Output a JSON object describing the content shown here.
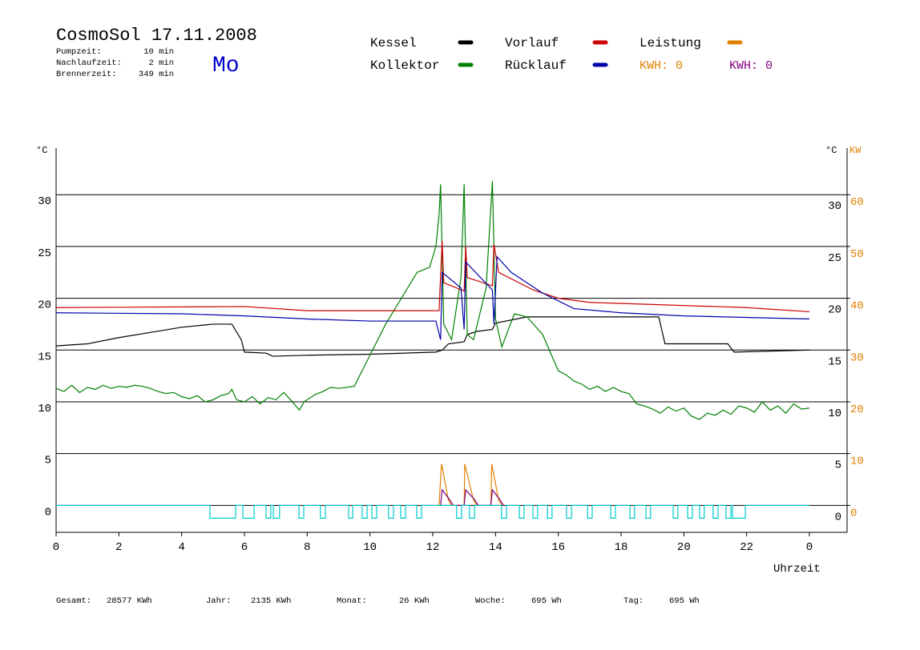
{
  "chart_data": {
    "type": "line",
    "title": "CosmoSol 17.11.2008",
    "info": [
      {
        "label": "Pumpzeit:",
        "value": "10 min"
      },
      {
        "label": "Nachlaufzeit:",
        "value": "2 min"
      },
      {
        "label": "Brennerzeit:",
        "value": "349 min"
      }
    ],
    "day": "Mo",
    "annotations": [
      {
        "text": "KWH: 0",
        "color": "#e08000"
      },
      {
        "text": "KWH: 0",
        "color": "#800080"
      }
    ],
    "y_label": "°C",
    "y2_label_c": "°C",
    "y2_label": "KW",
    "x_label": "Uhrzeit",
    "stats": [
      {
        "label": "Gesamt:",
        "value": "28577 KWh"
      },
      {
        "label": "Jahr:",
        "value": "2135 KWh"
      },
      {
        "label": "Monat:",
        "value": "26 KWh"
      },
      {
        "label": "Woche:",
        "value": "695 Wh"
      },
      {
        "label": "Tag:",
        "value": "695 Wh"
      }
    ],
    "xlim": [
      0,
      25.2
    ],
    "xticks": [
      0,
      2,
      4,
      6,
      8,
      10,
      12,
      14,
      16,
      18,
      20,
      22,
      {
        "value": 24,
        "label": "0"
      }
    ],
    "ylim": [
      -2.6,
      34.5
    ],
    "yticks": [
      0,
      5,
      10,
      15,
      20,
      25,
      30
    ],
    "y2lim": [
      -5.2,
      69
    ],
    "y2ticks": [
      0,
      10,
      20,
      30,
      40,
      50,
      60
    ],
    "grid": true,
    "series": [
      {
        "name": "Kessel",
        "color": "#000000",
        "x": [
          0,
          1,
          2,
          3,
          4,
          5.0,
          5.6,
          5.9,
          6.0,
          6.7,
          6.9,
          8,
          10,
          12.1,
          12.3,
          12.5,
          13.0,
          13.1,
          13.4,
          13.9,
          14.0,
          15,
          17,
          19.2,
          19.4,
          21.4,
          21.6,
          24
        ],
        "values": [
          15.4,
          15.6,
          16.2,
          16.7,
          17.2,
          17.5,
          17.5,
          16.0,
          14.8,
          14.7,
          14.4,
          14.5,
          14.6,
          14.8,
          15.0,
          15.6,
          15.8,
          16.5,
          16.8,
          17.0,
          17.6,
          18.2,
          18.2,
          18.2,
          15.6,
          15.6,
          14.8,
          15.0
        ]
      },
      {
        "name": "Kollektor",
        "color": "#008000",
        "x": [
          0,
          0.25,
          0.5,
          0.75,
          1,
          1.25,
          1.5,
          1.75,
          2,
          2.25,
          2.5,
          2.75,
          3,
          3.25,
          3.5,
          3.75,
          4,
          4.25,
          4.5,
          4.75,
          5,
          5.25,
          5.5,
          5.6,
          5.75,
          6,
          6.25,
          6.5,
          6.75,
          7,
          7.25,
          7.5,
          7.75,
          7.9,
          8.25,
          8.5,
          8.75,
          9,
          9.5,
          10,
          10.5,
          11,
          11.5,
          11.9,
          12.1,
          12.2,
          12.25,
          12.35,
          12.6,
          12.9,
          13.0,
          13.1,
          13.3,
          13.7,
          13.9,
          14.0,
          14.2,
          14.6,
          15.0,
          15.5,
          16,
          16.25,
          16.5,
          16.75,
          17,
          17.25,
          17.5,
          17.75,
          18,
          18.25,
          18.5,
          18.75,
          19,
          19.25,
          19.5,
          19.75,
          20,
          20.25,
          20.5,
          20.75,
          21,
          21.25,
          21.5,
          21.75,
          22,
          22.25,
          22.5,
          22.75,
          23,
          23.25,
          23.5,
          23.75,
          24
        ],
        "values": [
          11.3,
          11.0,
          11.6,
          10.9,
          11.4,
          11.2,
          11.6,
          11.3,
          11.5,
          11.4,
          11.6,
          11.5,
          11.3,
          11.0,
          10.8,
          10.9,
          10.5,
          10.3,
          10.6,
          10.0,
          10.2,
          10.6,
          10.8,
          11.2,
          10.2,
          10.0,
          10.5,
          9.8,
          10.4,
          10.2,
          10.9,
          10.1,
          9.2,
          10.0,
          10.7,
          11.0,
          11.4,
          11.3,
          11.5,
          14.5,
          17.5,
          20.0,
          22.5,
          23.0,
          25.0,
          28.0,
          31.0,
          17.5,
          16.0,
          22.0,
          31.0,
          16.5,
          16.0,
          21.0,
          31.3,
          18.0,
          15.3,
          18.5,
          18.2,
          16.5,
          13.0,
          12.6,
          12.0,
          11.7,
          11.2,
          11.5,
          11.0,
          11.4,
          11.0,
          10.8,
          9.8,
          9.6,
          9.3,
          8.9,
          9.5,
          9.1,
          9.4,
          8.6,
          8.3,
          8.9,
          8.7,
          9.2,
          8.8,
          9.6,
          9.4,
          9.0,
          10.0,
          9.2,
          9.6,
          8.9,
          9.8,
          9.3,
          9.4
        ]
      },
      {
        "name": "Vorlauf",
        "color": "#cc0000",
        "x": [
          0,
          6,
          8,
          12.2,
          12.3,
          12.35,
          13.0,
          13.05,
          13.1,
          13.9,
          13.95,
          14.1,
          15.2,
          16,
          17,
          19,
          22,
          24
        ],
        "values": [
          19.1,
          19.2,
          18.8,
          18.8,
          25.5,
          21.5,
          20.7,
          25.0,
          22.0,
          21.2,
          25.2,
          22.5,
          20.8,
          20.0,
          19.6,
          19.4,
          19.1,
          18.7
        ]
      },
      {
        "name": "Rücklauf",
        "color": "#0000aa",
        "x": [
          0,
          4,
          6,
          8,
          10,
          12.1,
          12.25,
          12.3,
          12.9,
          13.0,
          13.05,
          13.9,
          13.95,
          14.05,
          14.5,
          15.5,
          16.5,
          18,
          20,
          24
        ],
        "values": [
          18.6,
          18.5,
          18.3,
          18.0,
          17.8,
          17.8,
          16.0,
          22.5,
          21.0,
          17.0,
          23.5,
          20.8,
          17.5,
          24.0,
          22.5,
          20.5,
          19.0,
          18.6,
          18.3,
          18.0
        ]
      },
      {
        "name": "Leistung",
        "color": "#e08000",
        "axis": "y2",
        "x": [
          12.2,
          12.28,
          12.5,
          12.6,
          13.0,
          13.02,
          13.3,
          13.4,
          13.85,
          13.88,
          14.1,
          14.2
        ],
        "values": [
          0,
          8,
          1,
          0,
          0,
          8,
          1,
          0,
          0,
          8,
          1,
          0
        ]
      },
      {
        "color": "#800080",
        "axis": "y2",
        "x": [
          12.25,
          12.3,
          12.55,
          12.65,
          13.0,
          13.05,
          13.35,
          13.45,
          13.85,
          13.9,
          14.15,
          14.25
        ],
        "values": [
          0,
          3,
          1,
          0,
          0,
          3,
          1,
          0,
          0,
          3,
          1,
          0
        ]
      },
      {
        "color": "#00cccc",
        "step": "post",
        "x": [
          0,
          4.9,
          5.72,
          5.95,
          6.31,
          6.69,
          6.84,
          6.92,
          7.12,
          7.74,
          7.89,
          8.42,
          8.58,
          9.32,
          9.45,
          9.75,
          9.91,
          10.06,
          10.21,
          10.59,
          10.75,
          10.98,
          11.13,
          11.49,
          11.64,
          12.76,
          12.92,
          13.17,
          13.33,
          14.19,
          14.35,
          14.76,
          14.91,
          15.19,
          15.34,
          15.65,
          15.8,
          16.26,
          16.42,
          16.93,
          17.08,
          17.67,
          17.82,
          18.28,
          18.43,
          18.79,
          18.94,
          19.66,
          19.81,
          20.12,
          20.27,
          20.5,
          20.65,
          20.93,
          21.09,
          21.34,
          21.5,
          21.55,
          21.96,
          24
        ],
        "values": [
          0,
          -1.24,
          0,
          -1.24,
          0,
          -1.24,
          0,
          -1.24,
          0,
          -1.24,
          0,
          -1.24,
          0,
          -1.24,
          0,
          -1.24,
          0,
          -1.24,
          0,
          -1.24,
          0,
          -1.24,
          0,
          -1.24,
          0,
          -1.24,
          0,
          -1.24,
          0,
          -1.24,
          0,
          -1.24,
          0,
          -1.24,
          0,
          -1.24,
          0,
          -1.24,
          0,
          -1.24,
          0,
          -1.24,
          0,
          -1.24,
          0,
          -1.24,
          0,
          -1.24,
          0,
          -1.24,
          0,
          -1.24,
          0,
          -1.24,
          0,
          -1.24,
          0,
          -1.24,
          0,
          0
        ]
      }
    ]
  }
}
